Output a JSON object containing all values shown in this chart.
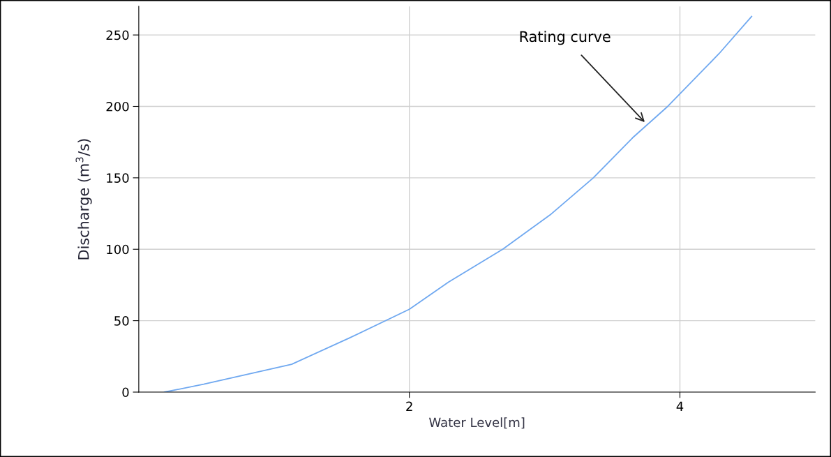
{
  "chart_data": {
    "type": "line",
    "xlabel": "Water Level[m]",
    "ylabel": "Discharge (m$^{3}$/s)",
    "x": [
      0.19,
      0.48,
      1.13,
      1.56,
      2,
      2.29,
      2.69,
      3.04,
      3.36,
      3.65,
      3.91,
      4.29,
      4.53
    ],
    "series": [
      {
        "color": "#6fa8f0",
        "values": [
          0,
          5.5,
          19.5,
          38,
          58,
          77,
          100,
          124,
          150,
          178,
          200,
          237,
          263
        ]
      }
    ],
    "xlim": [
      0,
      5
    ],
    "ylim": [
      0,
      270
    ],
    "xticks": [
      2,
      4
    ],
    "yticks": [
      0,
      50,
      100,
      150,
      200,
      250
    ],
    "grid": true,
    "legend": false,
    "marker": "none",
    "line_style": "solid",
    "annotations": [
      {
        "text": "Rating curve",
        "x": 3.74,
        "y": 189
      }
    ]
  }
}
